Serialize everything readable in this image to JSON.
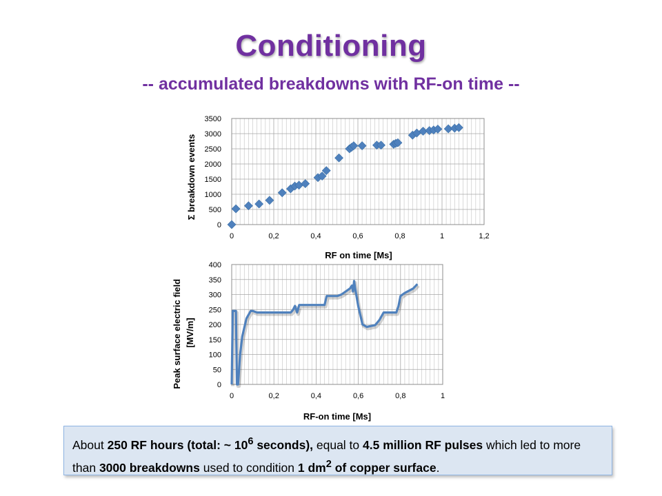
{
  "title": "Conditioning",
  "subtitle": "-- accumulated breakdowns with RF-on time --",
  "chart_data": [
    {
      "type": "scatter",
      "xlabel": "RF on time [Ms]",
      "ylabel": "Σ breakdown events",
      "xlim": [
        0,
        1.2
      ],
      "ylim": [
        0,
        3500
      ],
      "xticks": [
        "0",
        "0,2",
        "0,4",
        "0,6",
        "0,8",
        "1",
        "1,2"
      ],
      "yticks": [
        "0",
        "500",
        "1000",
        "1500",
        "2000",
        "2500",
        "3000",
        "3500"
      ],
      "grid": true,
      "marker": "diamond",
      "color": "#4f81bd",
      "x": [
        0,
        0.02,
        0.08,
        0.13,
        0.18,
        0.24,
        0.28,
        0.3,
        0.32,
        0.35,
        0.41,
        0.43,
        0.45,
        0.51,
        0.56,
        0.57,
        0.58,
        0.62,
        0.69,
        0.71,
        0.77,
        0.78,
        0.79,
        0.86,
        0.88,
        0.91,
        0.94,
        0.96,
        0.98,
        1.03,
        1.06,
        1.08
      ],
      "y": [
        0,
        520,
        620,
        680,
        800,
        1050,
        1180,
        1270,
        1300,
        1350,
        1550,
        1600,
        1780,
        2200,
        2500,
        2550,
        2600,
        2600,
        2620,
        2620,
        2650,
        2680,
        2700,
        2950,
        3020,
        3080,
        3100,
        3120,
        3150,
        3160,
        3180,
        3200
      ]
    },
    {
      "type": "line",
      "xlabel": "RF-on time [Ms]",
      "ylabel": "Peak surface electric field [MV/m]",
      "xlim": [
        0,
        1
      ],
      "ylim": [
        0,
        400
      ],
      "xticks": [
        "0",
        "0,2",
        "0,4",
        "0,6",
        "0,8",
        "1"
      ],
      "yticks": [
        "0",
        "50",
        "100",
        "150",
        "200",
        "250",
        "300",
        "350",
        "400"
      ],
      "grid": true,
      "color": "#4f81bd",
      "x": [
        0,
        0.005,
        0.02,
        0.025,
        0.03,
        0.04,
        0.05,
        0.07,
        0.09,
        0.1,
        0.12,
        0.2,
        0.28,
        0.29,
        0.3,
        0.31,
        0.32,
        0.33,
        0.4,
        0.44,
        0.45,
        0.5,
        0.52,
        0.56,
        0.57,
        0.575,
        0.58,
        0.585,
        0.6,
        0.62,
        0.64,
        0.68,
        0.7,
        0.72,
        0.73,
        0.78,
        0.79,
        0.8,
        0.82,
        0.86,
        0.88
      ],
      "y": [
        0,
        245,
        245,
        0,
        0,
        100,
        160,
        220,
        245,
        245,
        240,
        240,
        240,
        248,
        262,
        240,
        265,
        265,
        265,
        265,
        295,
        295,
        300,
        320,
        330,
        310,
        345,
        320,
        260,
        200,
        192,
        198,
        215,
        240,
        240,
        240,
        260,
        295,
        305,
        320,
        335
      ]
    }
  ],
  "note": {
    "p1": "About ",
    "b1": "250 RF hours (total: ~ 10",
    "b1sup": "6",
    "b1end": " seconds),",
    "p2": " equal to ",
    "b2": "4.5 million RF pulses",
    "p3": " which led to more than ",
    "b3": "3000 breakdowns",
    "p4": " used to condition ",
    "b4": "1 dm",
    "b4sup": "2",
    "b4end": " of copper surface",
    "p5": "."
  }
}
